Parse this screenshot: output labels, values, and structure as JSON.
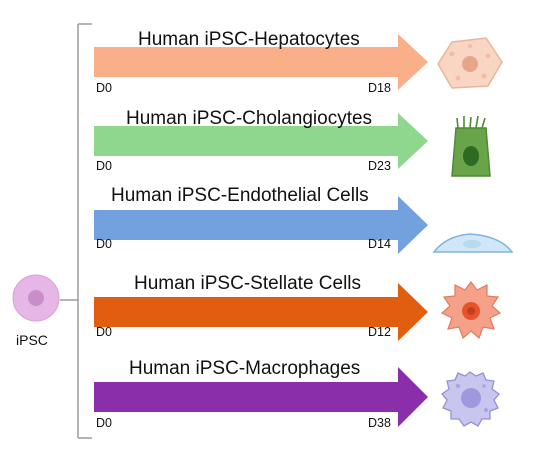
{
  "source": {
    "label": "iPSC",
    "colors": {
      "outer": "#e6b7e6",
      "inner": "#c98ec9"
    }
  },
  "pathways": [
    {
      "title": "Human iPSC-Hepatocytes",
      "start": "D0",
      "end": "D18",
      "arrow_color": "#f9b088",
      "cell_icon": "hepatocyte-icon"
    },
    {
      "title": "Human iPSC-Cholangiocytes",
      "start": "D0",
      "end": "D23",
      "arrow_color": "#8fd68f",
      "cell_icon": "cholangiocyte-icon"
    },
    {
      "title": "Human iPSC-Endothelial Cells",
      "start": "D0",
      "end": "D14",
      "arrow_color": "#73a1de",
      "cell_icon": "endothelial-cell-icon"
    },
    {
      "title": "Human iPSC-Stellate Cells",
      "start": "D0",
      "end": "D12",
      "arrow_color": "#e15e10",
      "cell_icon": "stellate-cell-icon"
    },
    {
      "title": "Human iPSC-Macrophages",
      "start": "D0",
      "end": "D38",
      "arrow_color": "#8a2ea9",
      "cell_icon": "macrophage-icon"
    }
  ],
  "bracket_color": "#9a9a9a"
}
